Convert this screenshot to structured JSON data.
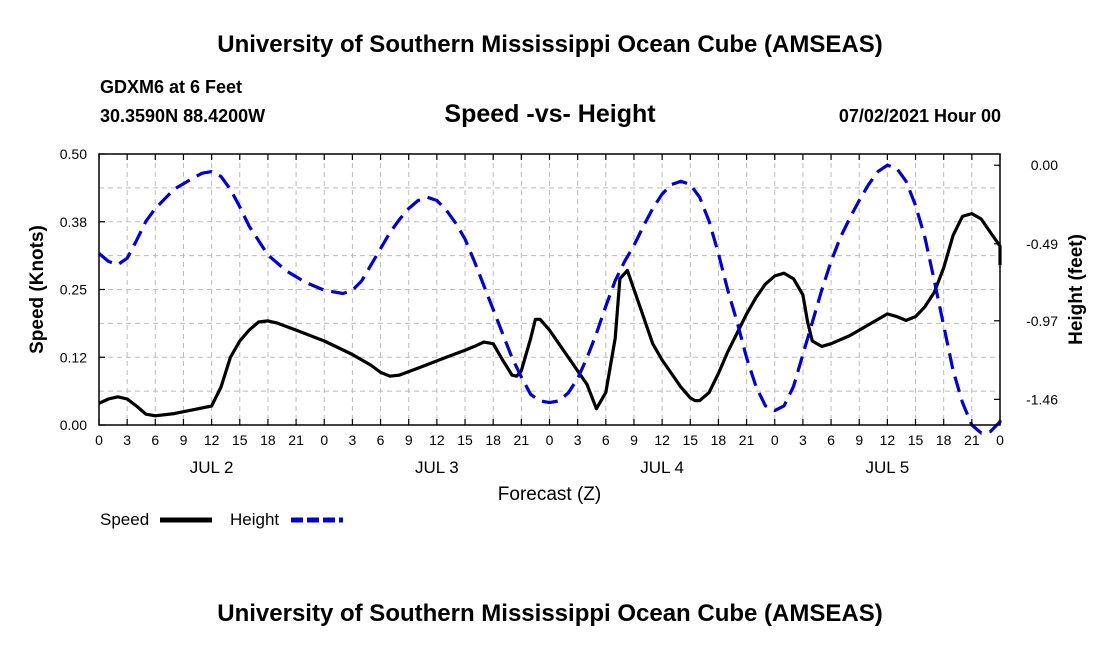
{
  "header": {
    "title_top": "University of Southern Mississippi Ocean Cube (AMSEAS)",
    "title_bottom": "University of Southern Mississippi Ocean Cube (AMSEAS)",
    "station": "GDXM6 at 6 Feet",
    "coordinates": "30.3590N  88.4200W",
    "datetime": "07/02/2021 Hour 00"
  },
  "chart_data": {
    "type": "line",
    "title": "Speed -vs- Height",
    "xlabel": "Forecast (Z)",
    "ylabel": "Speed (Knots)",
    "ylabel_right": "Height (feet)",
    "x_unit": "hours from 07/02/2021 00Z",
    "xlim": [
      0,
      96
    ],
    "ylim": [
      0,
      0.5
    ],
    "ylim_right": [
      -1.62,
      0.07
    ],
    "x_ticks": [
      0,
      3,
      6,
      9,
      12,
      15,
      18,
      21,
      24,
      27,
      30,
      33,
      36,
      39,
      42,
      45,
      48,
      51,
      54,
      57,
      60,
      63,
      66,
      69,
      72,
      75,
      78,
      81,
      84,
      87,
      90,
      93,
      96
    ],
    "x_tick_labels": [
      "0",
      "3",
      "6",
      "9",
      "12",
      "15",
      "18",
      "21",
      "0",
      "3",
      "6",
      "9",
      "12",
      "15",
      "18",
      "21",
      "0",
      "3",
      "6",
      "9",
      "12",
      "15",
      "18",
      "21",
      "0",
      "3",
      "6",
      "9",
      "12",
      "15",
      "18",
      "21",
      "0"
    ],
    "day_labels": [
      {
        "x": 12,
        "label": "JUL 2"
      },
      {
        "x": 36,
        "label": "JUL 3"
      },
      {
        "x": 60,
        "label": "JUL 4"
      },
      {
        "x": 84,
        "label": "JUL 5"
      }
    ],
    "y_ticks": [
      0,
      0.125,
      0.25,
      0.375,
      0.5
    ],
    "y_tick_labels": [
      "0.00",
      "0.12",
      "0.25",
      "0.38",
      "0.50"
    ],
    "y_right_ticks": [
      0.0,
      -0.49,
      -0.97,
      -1.46
    ],
    "y_right_tick_labels": [
      "0.00",
      "-0.49",
      "-0.97",
      "-1.46"
    ],
    "grid": true,
    "legend": [
      {
        "name": "Speed",
        "color": "#000000",
        "style": "solid"
      },
      {
        "name": "Height",
        "color": "#0000cc",
        "style": "dashed"
      }
    ],
    "series": [
      {
        "name": "Speed",
        "axis": "left",
        "color": "#000000",
        "dash": "solid",
        "points": [
          [
            0,
            0.04
          ],
          [
            1,
            0.048
          ],
          [
            2,
            0.052
          ],
          [
            3,
            0.048
          ],
          [
            4,
            0.035
          ],
          [
            5,
            0.02
          ],
          [
            6,
            0.017
          ],
          [
            8,
            0.021
          ],
          [
            10,
            0.028
          ],
          [
            12,
            0.035
          ],
          [
            13,
            0.07
          ],
          [
            14,
            0.125
          ],
          [
            15,
            0.155
          ],
          [
            16,
            0.175
          ],
          [
            17,
            0.19
          ],
          [
            18,
            0.192
          ],
          [
            19,
            0.188
          ],
          [
            21,
            0.175
          ],
          [
            24,
            0.155
          ],
          [
            27,
            0.13
          ],
          [
            29,
            0.11
          ],
          [
            30,
            0.097
          ],
          [
            31,
            0.09
          ],
          [
            32,
            0.092
          ],
          [
            34,
            0.105
          ],
          [
            37,
            0.125
          ],
          [
            39,
            0.138
          ],
          [
            40,
            0.145
          ],
          [
            41,
            0.153
          ],
          [
            42,
            0.15
          ],
          [
            43,
            0.12
          ],
          [
            44,
            0.092
          ],
          [
            44.5,
            0.09
          ],
          [
            45,
            0.1
          ],
          [
            46,
            0.16
          ],
          [
            46.5,
            0.195
          ],
          [
            47,
            0.195
          ],
          [
            48,
            0.175
          ],
          [
            50,
            0.125
          ],
          [
            52,
            0.075
          ],
          [
            53,
            0.03
          ],
          [
            54,
            0.06
          ],
          [
            55,
            0.16
          ],
          [
            55.5,
            0.27
          ],
          [
            56.3,
            0.285
          ],
          [
            57,
            0.25
          ],
          [
            58,
            0.2
          ],
          [
            59,
            0.15
          ],
          [
            60,
            0.12
          ],
          [
            61,
            0.095
          ],
          [
            62,
            0.07
          ],
          [
            63,
            0.05
          ],
          [
            63.5,
            0.045
          ],
          [
            64,
            0.045
          ],
          [
            65,
            0.06
          ],
          [
            66,
            0.095
          ],
          [
            67,
            0.135
          ],
          [
            68,
            0.17
          ],
          [
            69,
            0.205
          ],
          [
            70,
            0.235
          ],
          [
            71,
            0.26
          ],
          [
            72,
            0.275
          ],
          [
            73,
            0.28
          ],
          [
            74,
            0.27
          ],
          [
            75,
            0.24
          ],
          [
            75.5,
            0.19
          ],
          [
            76,
            0.155
          ],
          [
            77,
            0.145
          ],
          [
            78,
            0.15
          ],
          [
            80,
            0.165
          ],
          [
            82,
            0.185
          ],
          [
            84,
            0.205
          ],
          [
            85,
            0.2
          ],
          [
            86,
            0.193
          ],
          [
            87,
            0.2
          ],
          [
            88,
            0.218
          ],
          [
            89,
            0.245
          ],
          [
            90,
            0.29
          ],
          [
            91,
            0.35
          ],
          [
            92,
            0.385
          ],
          [
            93,
            0.39
          ],
          [
            94,
            0.38
          ],
          [
            95,
            0.355
          ],
          [
            96,
            0.33
          ],
          [
            96.3,
            0.295
          ]
        ]
      },
      {
        "name": "Height",
        "axis": "right",
        "color": "#0000cc",
        "dash": "dashed",
        "points": [
          [
            0,
            -0.55
          ],
          [
            1,
            -0.6
          ],
          [
            2,
            -0.62
          ],
          [
            3,
            -0.58
          ],
          [
            4,
            -0.47
          ],
          [
            5,
            -0.35
          ],
          [
            6,
            -0.27
          ],
          [
            8,
            -0.15
          ],
          [
            10,
            -0.08
          ],
          [
            11,
            -0.05
          ],
          [
            12,
            -0.04
          ],
          [
            13,
            -0.07
          ],
          [
            14,
            -0.15
          ],
          [
            15,
            -0.26
          ],
          [
            16,
            -0.38
          ],
          [
            17,
            -0.47
          ],
          [
            18,
            -0.56
          ],
          [
            20,
            -0.66
          ],
          [
            22,
            -0.73
          ],
          [
            24,
            -0.78
          ],
          [
            26,
            -0.8
          ],
          [
            27,
            -0.78
          ],
          [
            28,
            -0.72
          ],
          [
            29,
            -0.62
          ],
          [
            30,
            -0.52
          ],
          [
            31,
            -0.42
          ],
          [
            32,
            -0.34
          ],
          [
            33,
            -0.27
          ],
          [
            34,
            -0.22
          ],
          [
            35,
            -0.2
          ],
          [
            36,
            -0.22
          ],
          [
            37,
            -0.28
          ],
          [
            38,
            -0.36
          ],
          [
            39,
            -0.46
          ],
          [
            40,
            -0.6
          ],
          [
            41,
            -0.75
          ],
          [
            42,
            -0.9
          ],
          [
            43,
            -1.05
          ],
          [
            44,
            -1.2
          ],
          [
            45,
            -1.32
          ],
          [
            46,
            -1.43
          ],
          [
            47,
            -1.47
          ],
          [
            48,
            -1.48
          ],
          [
            49,
            -1.47
          ],
          [
            50,
            -1.42
          ],
          [
            51,
            -1.33
          ],
          [
            52,
            -1.2
          ],
          [
            53,
            -1.05
          ],
          [
            54,
            -0.88
          ],
          [
            55,
            -0.72
          ],
          [
            56,
            -0.6
          ],
          [
            57,
            -0.5
          ],
          [
            58,
            -0.38
          ],
          [
            59,
            -0.27
          ],
          [
            60,
            -0.18
          ],
          [
            61,
            -0.12
          ],
          [
            62,
            -0.1
          ],
          [
            63,
            -0.12
          ],
          [
            64,
            -0.2
          ],
          [
            65,
            -0.35
          ],
          [
            66,
            -0.55
          ],
          [
            67,
            -0.78
          ],
          [
            68,
            -0.98
          ],
          [
            69,
            -1.2
          ],
          [
            70,
            -1.38
          ],
          [
            71,
            -1.5
          ],
          [
            72,
            -1.53
          ],
          [
            73,
            -1.5
          ],
          [
            74,
            -1.38
          ],
          [
            75,
            -1.18
          ],
          [
            76,
            -0.98
          ],
          [
            77,
            -0.78
          ],
          [
            78,
            -0.6
          ],
          [
            79,
            -0.45
          ],
          [
            80,
            -0.33
          ],
          [
            81,
            -0.22
          ],
          [
            82,
            -0.12
          ],
          [
            83,
            -0.04
          ],
          [
            84,
            0.0
          ],
          [
            85,
            -0.02
          ],
          [
            86,
            -0.1
          ],
          [
            87,
            -0.25
          ],
          [
            88,
            -0.45
          ],
          [
            89,
            -0.72
          ],
          [
            90,
            -1.0
          ],
          [
            91,
            -1.28
          ],
          [
            92,
            -1.48
          ],
          [
            93,
            -1.62
          ],
          [
            94,
            -1.67
          ],
          [
            95,
            -1.66
          ],
          [
            96,
            -1.6
          ],
          [
            96.3,
            -1.57
          ]
        ]
      }
    ]
  }
}
